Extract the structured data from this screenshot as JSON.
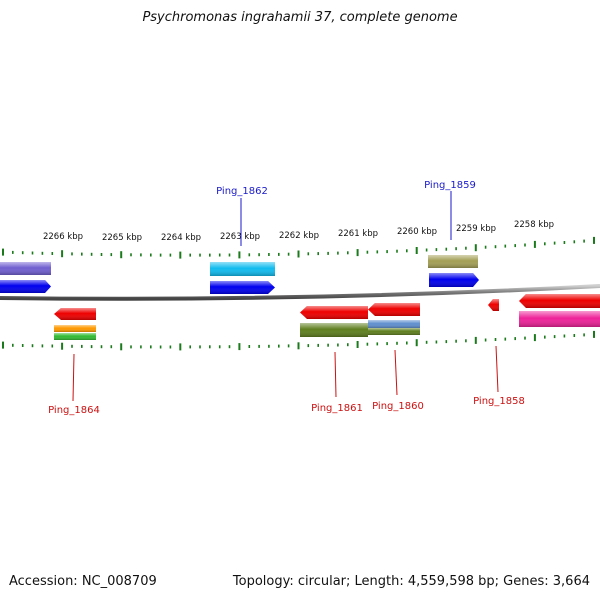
{
  "title": "Psychromonas ingrahamii 37, complete genome",
  "footer": {
    "accession": "Accession: NC_008709",
    "summary": "Topology: circular; Length: 4,559,598 bp; Genes: 3,664"
  },
  "scale_labels": [
    "2266 kbp",
    "2265 kbp",
    "2264 kbp",
    "2263 kbp",
    "2262 kbp",
    "2261 kbp",
    "2260 kbp",
    "2259 kbp",
    "2258 kbp"
  ],
  "gene_labels": {
    "top": [
      {
        "text": "Ping_1862",
        "color": "#1a1acc"
      },
      {
        "text": "Ping_1859",
        "color": "#1a1acc"
      }
    ],
    "bottom": [
      {
        "text": "Ping_1864",
        "color": "#cc1111"
      },
      {
        "text": "Ping_1861",
        "color": "#cc1111"
      },
      {
        "text": "Ping_1860",
        "color": "#cc1111"
      },
      {
        "text": "Ping_1858",
        "color": "#cc1111"
      }
    ]
  },
  "colors": {
    "ticks": "#1b7a1b",
    "backbone": "#888888",
    "red": "#ee0000",
    "blue": "#0000ee",
    "cyan": "#11bbee",
    "purple": "#6f5fd0",
    "olive": "#a39f55",
    "green_olive": "#5f7f1f",
    "orange": "#ff9900",
    "green": "#33bb33",
    "steel": "#5f8fcf",
    "magenta": "#ee2299"
  }
}
